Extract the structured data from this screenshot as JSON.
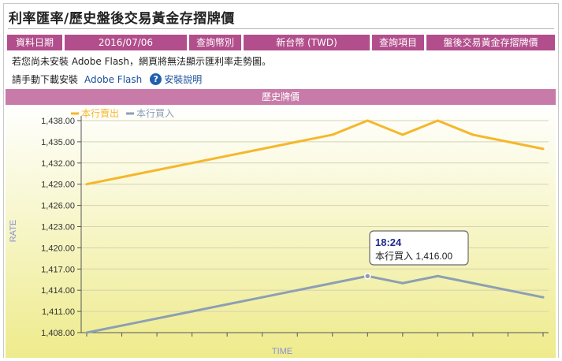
{
  "page": {
    "title": "利率匯率/歷史盤後交易黃金存摺牌價",
    "info": {
      "date_label": "資料日期",
      "date_value": "2016/07/06",
      "currency_label": "查詢幣別",
      "currency_value": "新台幣 (TWD)",
      "item_label": "查詢項目",
      "item_value": "盤後交易黃金存摺牌價"
    },
    "flash_note": "若您尚未安裝 Adobe Flash，網頁將無法顯示匯利率走勢圖。",
    "download_note": "請手動下載安裝",
    "download_link": "Adobe Flash",
    "help_link": "安裝說明",
    "history_header": "歷史牌價"
  },
  "colors": {
    "sell": "#f5b72c",
    "buy": "#8d9fb3",
    "header_bar": "#b24e8c",
    "history_bar": "#c87aa8"
  },
  "chart_data": {
    "type": "line",
    "xlabel": "TIME",
    "ylabel": "RATE",
    "ylim": [
      1408,
      1438
    ],
    "yticks": [
      "1,408.00",
      "1,411.00",
      "1,414.00",
      "1,417.00",
      "1,420.00",
      "1,423.00",
      "1,426.00",
      "1,429.00",
      "1,432.00",
      "1,435.00",
      "1,438.00"
    ],
    "legend_position": "top-left",
    "grid": true,
    "series": [
      {
        "name": "本行賣出",
        "values": [
          1429,
          1430,
          1431,
          1432,
          1433,
          1434,
          1435,
          1436,
          1438,
          1436,
          1438,
          1436,
          1435,
          1434
        ]
      },
      {
        "name": "本行買入",
        "values": [
          1408,
          1409,
          1410,
          1411,
          1412,
          1413,
          1414,
          1415,
          1416,
          1415,
          1416,
          1415,
          1414,
          1413
        ]
      }
    ],
    "tooltip": {
      "time": "18:24",
      "series_label": "本行買入",
      "value": "1,416.00",
      "point_index": 8
    }
  }
}
